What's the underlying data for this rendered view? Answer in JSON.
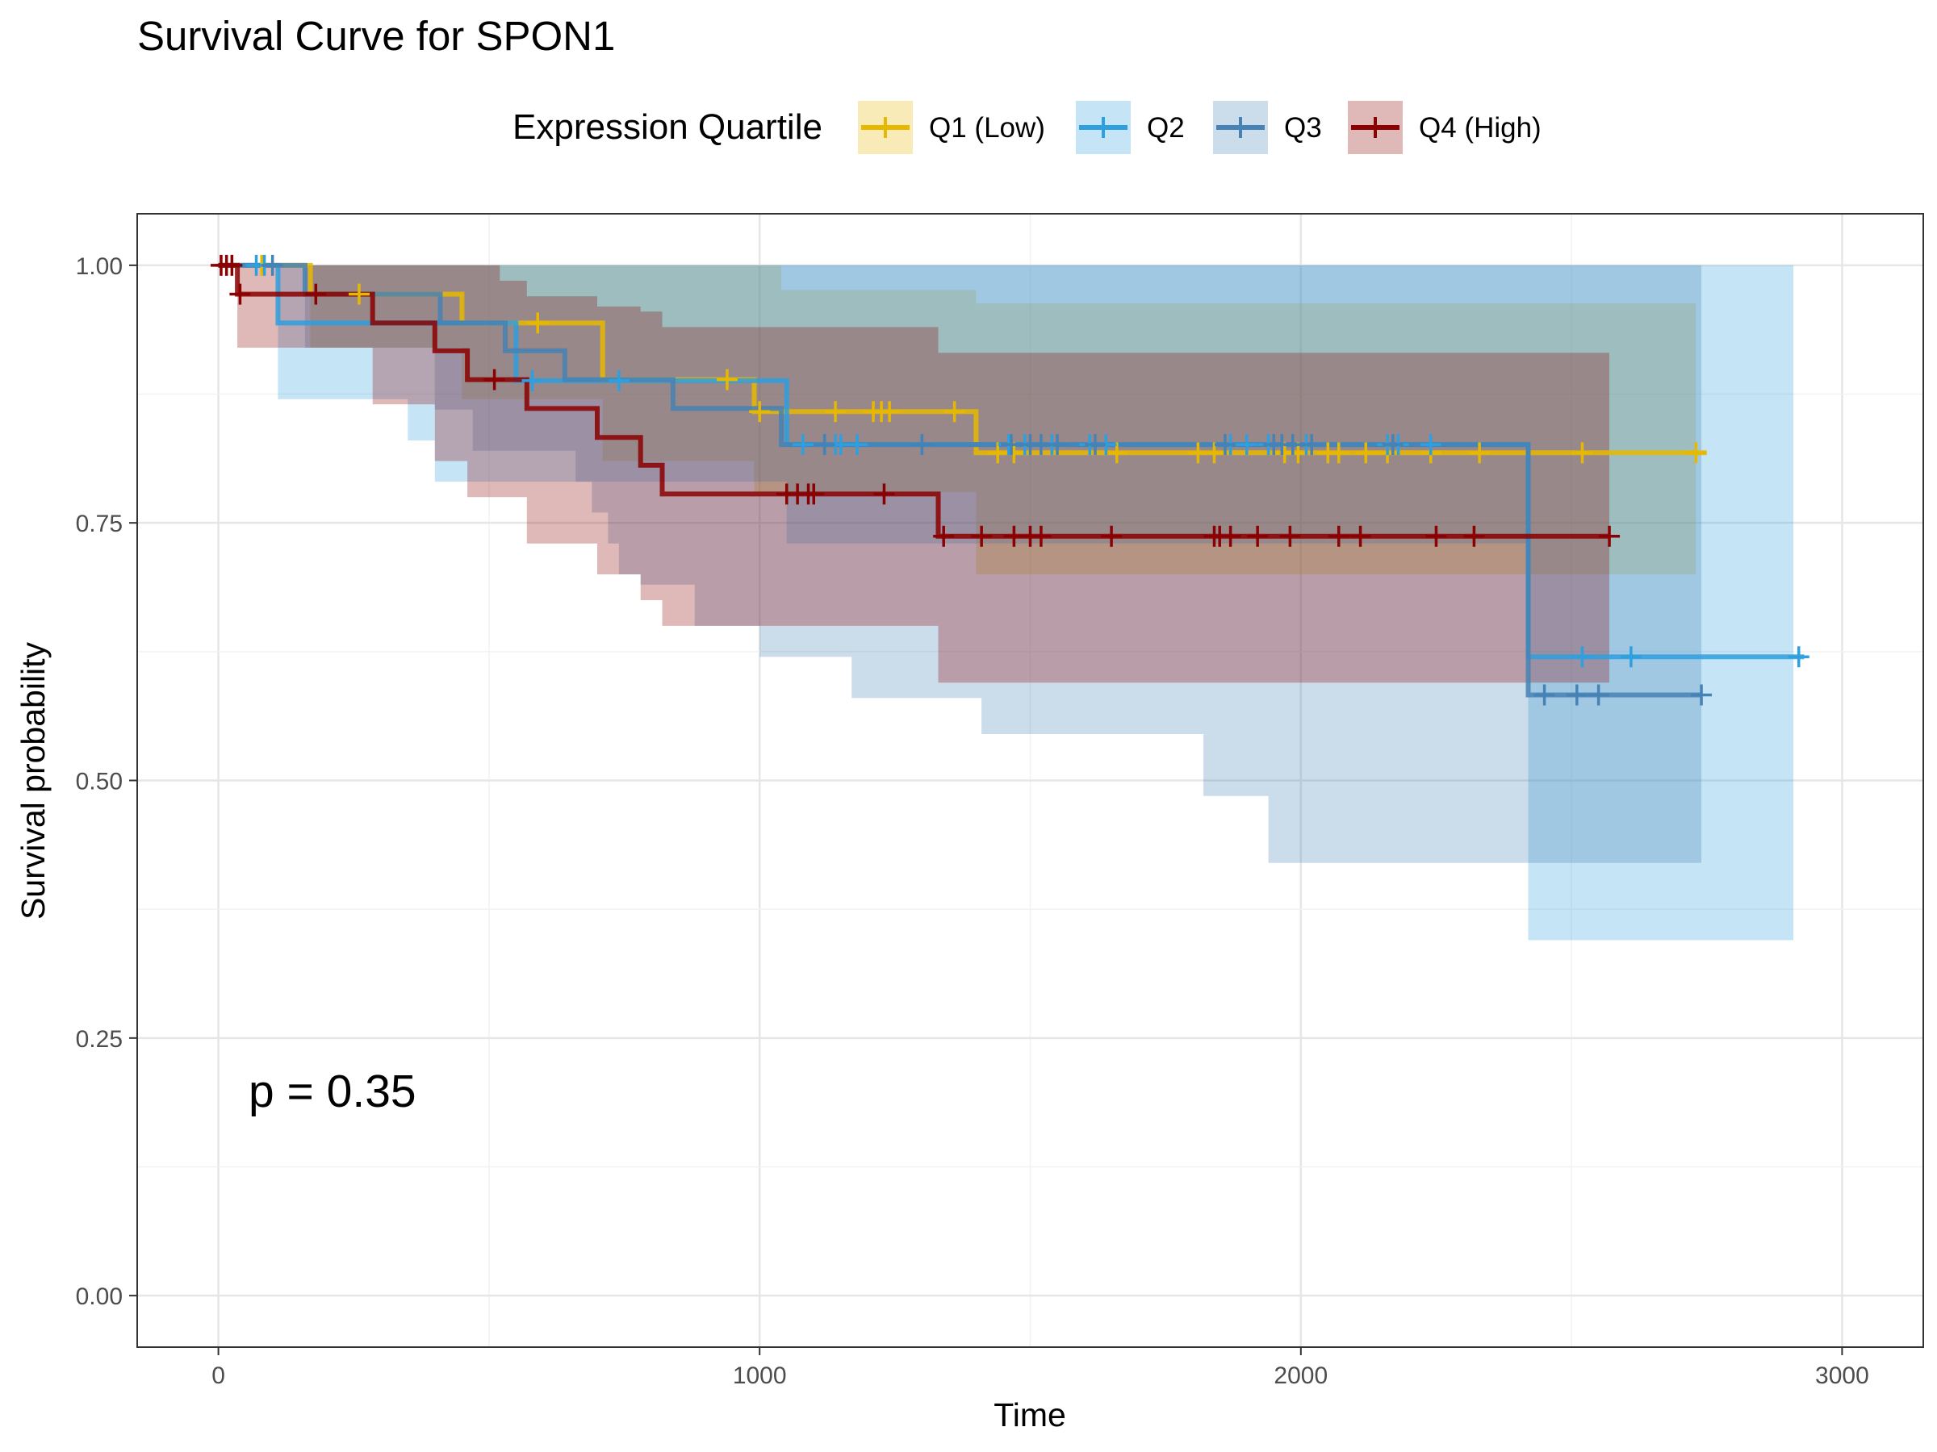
{
  "chart_data": {
    "type": "line",
    "subtype": "kaplan-meier survival curve with confidence bands and censor marks",
    "title": "Survival Curve for SPON1",
    "xlabel": "Time",
    "ylabel": "Survival probability",
    "xlim": [
      -150,
      3150
    ],
    "ylim": [
      -0.05,
      1.05
    ],
    "x_ticks": [
      0,
      1000,
      2000,
      3000
    ],
    "x_tick_labels": [
      "0",
      "1000",
      "2000",
      "3000"
    ],
    "y_ticks": [
      0,
      0.25,
      0.5,
      0.75,
      1
    ],
    "y_tick_labels": [
      "0.00",
      "0.25",
      "0.50",
      "0.75",
      "1.00"
    ],
    "grid": true,
    "legend": {
      "title": "Expression Quartile",
      "position": "top"
    },
    "annotation": "p = 0.35",
    "series": [
      {
        "name": "Q1 (Low)",
        "color": "#E7B800",
        "steps": [
          [
            0,
            1.0
          ],
          [
            170,
            0.972
          ],
          [
            450,
            0.944
          ],
          [
            710,
            0.889
          ],
          [
            990,
            0.858
          ],
          [
            1400,
            0.818
          ],
          [
            2750,
            0.818
          ]
        ],
        "upper": [
          [
            0,
            1.0
          ],
          [
            980,
            1.0
          ],
          [
            1040,
            0.976
          ],
          [
            1400,
            0.976
          ],
          [
            1400,
            0.963
          ],
          [
            2730,
            0.963
          ]
        ],
        "lower": [
          [
            0,
            1.0
          ],
          [
            170,
            0.92
          ],
          [
            450,
            0.87
          ],
          [
            710,
            0.81
          ],
          [
            990,
            0.78
          ],
          [
            1400,
            0.7
          ],
          [
            2730,
            0.7
          ]
        ],
        "censor": [
          80,
          260,
          590,
          940,
          1000,
          1140,
          1210,
          1225,
          1240,
          1360,
          1440,
          1470,
          1660,
          1810,
          1840,
          1970,
          1995,
          2050,
          2070,
          2120,
          2160,
          2240,
          2330,
          2520,
          2730
        ]
      },
      {
        "name": "Q2",
        "color": "#2E9FDF",
        "steps": [
          [
            0,
            1.0
          ],
          [
            110,
            0.944
          ],
          [
            550,
            0.888
          ],
          [
            1050,
            0.826
          ],
          [
            2420,
            0.62
          ],
          [
            2930,
            0.62
          ]
        ],
        "upper": [
          [
            0,
            1.0
          ],
          [
            2420,
            1.0
          ],
          [
            2910,
            1.0
          ]
        ],
        "lower": [
          [
            0,
            1.0
          ],
          [
            110,
            0.87
          ],
          [
            350,
            0.83
          ],
          [
            400,
            0.79
          ],
          [
            550,
            0.79
          ],
          [
            1050,
            0.73
          ],
          [
            2420,
            0.345
          ],
          [
            2910,
            0.345
          ]
        ],
        "censor": [
          70,
          85,
          580,
          740,
          1080,
          1120,
          1140,
          1150,
          1180,
          1300,
          1460,
          1490,
          1540,
          1610,
          1640,
          1870,
          1900,
          1940,
          2010,
          2160,
          2180,
          2240,
          2520,
          2610,
          2920
        ]
      },
      {
        "name": "Q3",
        "color": "#4682B4",
        "steps": [
          [
            0,
            1.0
          ],
          [
            160,
            0.972
          ],
          [
            410,
            0.944
          ],
          [
            530,
            0.917
          ],
          [
            640,
            0.889
          ],
          [
            840,
            0.861
          ],
          [
            1040,
            0.826
          ],
          [
            1400,
            0.826
          ],
          [
            2420,
            0.583
          ],
          [
            2740,
            0.583
          ]
        ],
        "extra_steps_upper_path": [
          [
            0,
            1.0
          ],
          [
            160,
            0.972
          ],
          [
            330,
            0.944
          ],
          [
            400,
            0.917
          ],
          [
            470,
            0.889
          ],
          [
            670,
            0.861
          ],
          [
            700,
            0.833
          ],
          [
            730,
            0.806
          ],
          [
            880,
            0.778
          ],
          [
            1000,
            0.75
          ],
          [
            1170,
            0.718
          ],
          [
            1410,
            0.684
          ],
          [
            1820,
            0.635
          ],
          [
            1940,
            0.583
          ],
          [
            2740,
            0.583
          ]
        ],
        "upper": [
          [
            0,
            1.0
          ],
          [
            1400,
            1.0
          ],
          [
            2420,
            1.0
          ],
          [
            2740,
            0.8
          ]
        ],
        "lower": [
          [
            0,
            1.0
          ],
          [
            160,
            0.92
          ],
          [
            400,
            0.86
          ],
          [
            470,
            0.82
          ],
          [
            660,
            0.79
          ],
          [
            690,
            0.76
          ],
          [
            720,
            0.73
          ],
          [
            740,
            0.7
          ],
          [
            780,
            0.69
          ],
          [
            880,
            0.65
          ],
          [
            1000,
            0.62
          ],
          [
            1170,
            0.58
          ],
          [
            1410,
            0.545
          ],
          [
            1820,
            0.485
          ],
          [
            1940,
            0.42
          ],
          [
            2740,
            0.42
          ]
        ],
        "censor": [
          100,
          1120,
          1300,
          1465,
          1500,
          1520,
          1550,
          1620,
          1860,
          1950,
          1965,
          1985,
          2020,
          2170,
          2450,
          2510,
          2550,
          2740
        ]
      },
      {
        "name": "Q4 (High)",
        "color": "#8B0000",
        "steps": [
          [
            0,
            1.0
          ],
          [
            35,
            0.972
          ],
          [
            285,
            0.944
          ],
          [
            400,
            0.917
          ],
          [
            460,
            0.889
          ],
          [
            570,
            0.861
          ],
          [
            700,
            0.833
          ],
          [
            780,
            0.806
          ],
          [
            820,
            0.778
          ],
          [
            1330,
            0.778
          ],
          [
            1330,
            0.737
          ],
          [
            2570,
            0.737
          ]
        ],
        "upper": [
          [
            0,
            1.0
          ],
          [
            460,
            1.0
          ],
          [
            520,
            0.985
          ],
          [
            570,
            0.97
          ],
          [
            700,
            0.96
          ],
          [
            780,
            0.955
          ],
          [
            820,
            0.94
          ],
          [
            1330,
            0.94
          ],
          [
            1330,
            0.915
          ],
          [
            2570,
            0.915
          ]
        ],
        "lower": [
          [
            0,
            1.0
          ],
          [
            35,
            0.92
          ],
          [
            285,
            0.865
          ],
          [
            400,
            0.81
          ],
          [
            460,
            0.775
          ],
          [
            570,
            0.73
          ],
          [
            700,
            0.7
          ],
          [
            780,
            0.675
          ],
          [
            820,
            0.65
          ],
          [
            1330,
            0.65
          ],
          [
            1330,
            0.595
          ],
          [
            2570,
            0.595
          ]
        ],
        "censor": [
          5,
          15,
          25,
          40,
          180,
          510,
          1050,
          1070,
          1090,
          1100,
          1230,
          1340,
          1410,
          1470,
          1500,
          1520,
          1650,
          1840,
          1850,
          1870,
          1920,
          1980,
          2070,
          2110,
          2250,
          2320,
          2570
        ]
      }
    ]
  }
}
